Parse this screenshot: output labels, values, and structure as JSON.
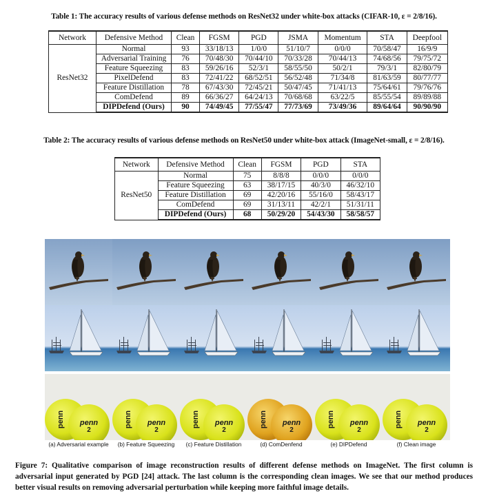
{
  "table1": {
    "caption": "Table 1: The accuracy results of various defense methods on ResNet32 under white-box attacks (CIFAR-10, ε = 2/8/16).",
    "headers": [
      "Network",
      "Defensive Method",
      "Clean",
      "FGSM",
      "PGD",
      "JSMA",
      "Momentum",
      "STA",
      "Deepfool"
    ],
    "network": "ResNet32",
    "rows": [
      [
        "Normal",
        "93",
        "33/18/13",
        "1/0/0",
        "51/10/7",
        "0/0/0",
        "70/58/47",
        "16/9/9"
      ],
      [
        "Adversarial Training",
        "76",
        "70/48/30",
        "70/44/10",
        "70/33/28",
        "70/44/13",
        "74/68/56",
        "79/75/72"
      ],
      [
        "Feature Squeezing",
        "83",
        "59/26/16",
        "52/3/1",
        "58/55/50",
        "50/2/1",
        "79/3/1",
        "82/80/79"
      ],
      [
        "PixelDefend",
        "83",
        "72/41/22",
        "68/52/51",
        "56/52/48",
        "71/34/8",
        "81/63/59",
        "80/77/77"
      ],
      [
        "Feature Distillation",
        "78",
        "67/43/30",
        "72/45/21",
        "50/47/45",
        "71/41/13",
        "75/64/61",
        "79/76/76"
      ],
      [
        "ComDefend",
        "89",
        "66/36/27",
        "64/24/13",
        "70/68/68",
        "63/22/5",
        "85/55/54",
        "89/89/88"
      ],
      [
        "DIPDefend (Ours)",
        "90",
        "74/49/45",
        "77/55/47",
        "77/73/69",
        "73/49/36",
        "89/64/64",
        "90/90/90"
      ]
    ]
  },
  "table2": {
    "caption": "Table 2: The accuracy results of various defense methods on ResNet50 under white-box attack (ImageNet-small, ε = 2/8/16).",
    "headers": [
      "Network",
      "Defensive Method",
      "Clean",
      "FGSM",
      "PGD",
      "STA"
    ],
    "network": "ResNet50",
    "rows": [
      [
        "Normal",
        "75",
        "8/8/8",
        "0/0/0",
        "0/0/0"
      ],
      [
        "Feature Squeezing",
        "63",
        "38/17/15",
        "40/3/0",
        "46/32/10"
      ],
      [
        "Feature Distillation",
        "69",
        "42/20/16",
        "55/16/0",
        "58/43/17"
      ],
      [
        "ComDefend",
        "69",
        "31/13/11",
        "42/2/1",
        "51/31/11"
      ],
      [
        "DIPDefend (Ours)",
        "68",
        "50/29/20",
        "54/43/30",
        "58/58/57"
      ]
    ]
  },
  "figure": {
    "sublabels": [
      "(a) Adversarial example",
      "(b) Feature Squeezing",
      "(c) Feature Distillation",
      "(d) ComDenfend",
      "(e) DIPDefend",
      "(f) Clean image"
    ],
    "ball_text": "penn",
    "ball_num": "2",
    "caption": "Figure 7: Qualitative comparison of image reconstruction results of different defense methods on ImageNet. The first column is adversarial input generated by PGD [24] attack. The last column is the corresponding clean images. We see that our method produces better visual results on removing adversarial perturbation while keeping more faithful image details."
  }
}
